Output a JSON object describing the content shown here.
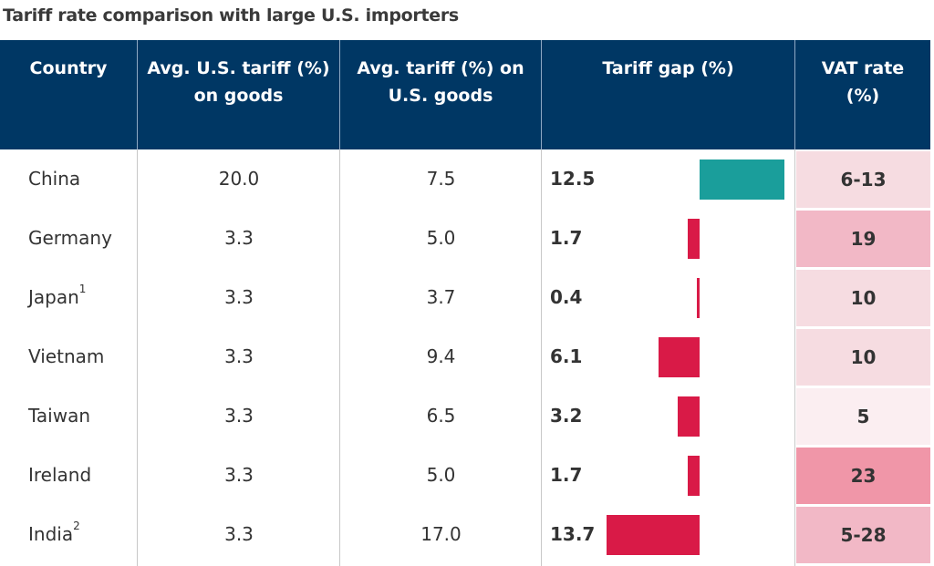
{
  "title": "Tariff rate comparison with large U.S. importers",
  "colors": {
    "header": "#003764",
    "positive_bar": "#1a9e9b",
    "negative_bar": "#d91a47"
  },
  "chart_data": {
    "type": "table",
    "title": "Tariff rate comparison with large U.S. importers",
    "columns": [
      "Country",
      "Avg. U.S. tariff (%)\non goods",
      "Avg. tariff (%) on\nU.S. goods",
      "Tariff gap (%)",
      "VAT rate\n(%)"
    ],
    "rows": [
      {
        "country": "China",
        "sup": "",
        "us_tariff": "20.0",
        "tariff_on_us": "7.5",
        "gap": "12.5",
        "gap_bar": 12.5,
        "vat": "6-13",
        "vat_color": "#f6dce1"
      },
      {
        "country": "Germany",
        "sup": "",
        "us_tariff": "3.3",
        "tariff_on_us": "5.0",
        "gap": "1.7",
        "gap_bar": -1.7,
        "vat": "19",
        "vat_color": "#f2b8c6"
      },
      {
        "country": "Japan",
        "sup": "1",
        "us_tariff": "3.3",
        "tariff_on_us": "3.7",
        "gap": "0.4",
        "gap_bar": -0.4,
        "vat": "10",
        "vat_color": "#f6dce1"
      },
      {
        "country": "Vietnam",
        "sup": "",
        "us_tariff": "3.3",
        "tariff_on_us": "9.4",
        "gap": "6.1",
        "gap_bar": -6.1,
        "vat": "10",
        "vat_color": "#f6dce1"
      },
      {
        "country": "Taiwan",
        "sup": "",
        "us_tariff": "3.3",
        "tariff_on_us": "6.5",
        "gap": "3.2",
        "gap_bar": -3.2,
        "vat": "5",
        "vat_color": "#fbeef1"
      },
      {
        "country": "Ireland",
        "sup": "",
        "us_tariff": "3.3",
        "tariff_on_us": "5.0",
        "gap": "1.7",
        "gap_bar": -1.7,
        "vat": "23",
        "vat_color": "#f096a8"
      },
      {
        "country": "India",
        "sup": "2",
        "us_tariff": "3.3",
        "tariff_on_us": "17.0",
        "gap": "13.7",
        "gap_bar": -13.7,
        "vat": "5-28",
        "vat_color": "#f2b8c6"
      }
    ]
  }
}
